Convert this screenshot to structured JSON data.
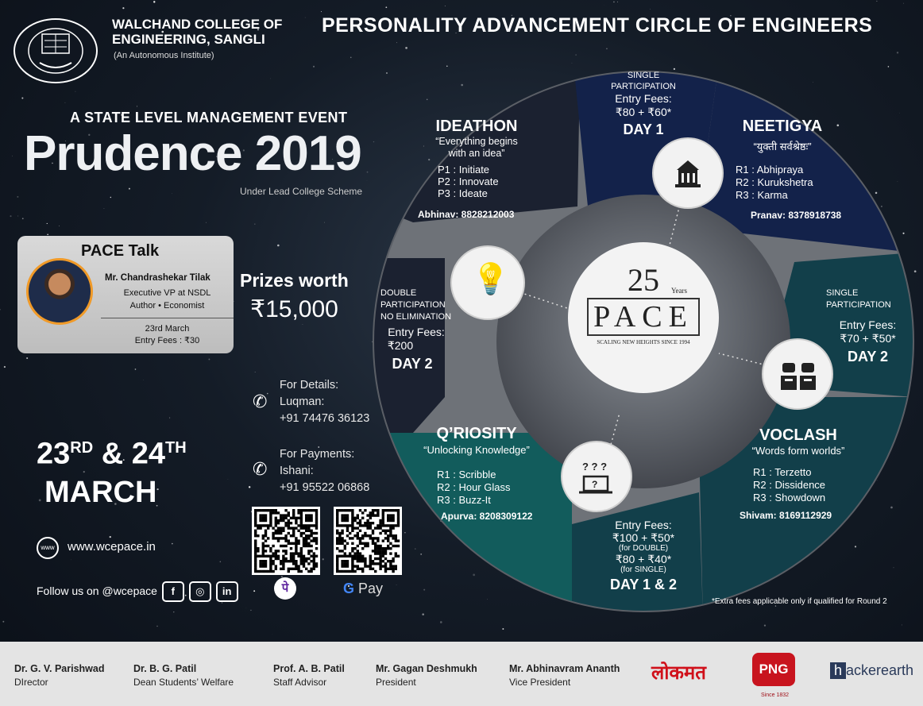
{
  "header": {
    "title": "PERSONALITY ADVANCEMENT CIRCLE OF ENGINEERS",
    "college_line1": "WALCHAND COLLEGE OF",
    "college_line2": "ENGINEERING, SANGLI",
    "college_sub": "(An Autonomous Institute)",
    "logo_text_top": "प्रियाविद्धि : शती",
    "logo_text_bottom": "WALCHAND COLLEGE OF ENGINEERING"
  },
  "event": {
    "type": "A STATE LEVEL MANAGEMENT EVENT",
    "name": "Prudence 2019",
    "scheme": "Under Lead College Scheme"
  },
  "pace_talk": {
    "title": "PACE Talk",
    "speaker": "Mr. Chandrashekar Tilak",
    "role": "Executive VP at NSDL",
    "tags": "Author • Economist",
    "date": "23rd March",
    "fees": "Entry Fees : ₹30"
  },
  "prizes": {
    "label": "Prizes worth",
    "amount": "₹15,000"
  },
  "contacts": {
    "details_label": "For Details:",
    "details_name": "Luqman:",
    "details_phone": "+91 74476 36123",
    "payments_label": "For Payments:",
    "payments_name": "Ishani:",
    "payments_phone": "+91 95522 06868"
  },
  "dates": {
    "day1": "23",
    "sup1": "RD",
    "amp": "&",
    "day2": "24",
    "sup2": "TH",
    "month": "MARCH"
  },
  "payments": {
    "phonepe_symbol": "पे",
    "gpay_label": "Pay",
    "gpay_g": "G"
  },
  "website": {
    "icon": "www",
    "url": "www.wcepace.in"
  },
  "social": {
    "follow": "Follow us on @wcepace",
    "icons": [
      "f",
      "◎",
      "in"
    ]
  },
  "center": {
    "years": "Years",
    "number": "25",
    "logo": "PACE",
    "tagline": "SCALING NEW HEIGHTS SINCE 1994"
  },
  "events": {
    "ideathon": {
      "title": "IDEATHON",
      "quote": "“Everything begins",
      "quote2": "with an idea”",
      "r1": "P1 :  Initiate",
      "r2": "P2 :  Innovate",
      "r3": "P3 :  Ideate",
      "contact": "Abhinav: 8828212003"
    },
    "day1_fee": {
      "l1": "SINGLE",
      "l2": "PARTICIPATION",
      "l3": "Entry Fees:",
      "l4": "₹80 + ₹60*",
      "day": "DAY 1"
    },
    "neetigya": {
      "title": "NEETIGYA",
      "quote": "“युक्ती सर्वश्रेष्ठः”",
      "r1": "R1 : Abhipraya",
      "r2": "R2 : Kurukshetra",
      "r3": "R3 : Karma",
      "contact": "Pranav: 8378918738"
    },
    "day2_single": {
      "l1": "SINGLE",
      "l2": "PARTICIPATION",
      "l3": "Entry Fees:",
      "l4": "₹70 + ₹50*",
      "day": "DAY 2"
    },
    "voclash": {
      "title": "VOCLASH",
      "quote": "“Words form worlds”",
      "r1": "R1 : Terzetto",
      "r2": "R2 : Dissidence",
      "r3": "R3 : Showdown",
      "contact": "Shivam: 8169112929"
    },
    "day12_fee": {
      "l1": "Entry Fees:",
      "l2": "₹100 + ₹50*",
      "l3": "(for DOUBLE)",
      "l4": "₹80 + ₹40*",
      "l5": "(for SINGLE)",
      "day": "DAY 1 & 2"
    },
    "qriosity": {
      "title": "Q’RIOSITY",
      "quote": "“Unlocking Knowledge”",
      "r1": "R1 : Scribble",
      "r2": "R2 : Hour Glass",
      "r3": "R3 : Buzz-It",
      "contact": "Apurva: 8208309122"
    },
    "day2_double": {
      "l1": "DOUBLE",
      "l2": "PARTICIPATION",
      "l3": "NO ELIMINATION",
      "l4": "Entry Fees:",
      "l5": "₹200",
      "day": "DAY 2"
    }
  },
  "note": "*Extra fees applicable only if qualified for Round 2",
  "footer": {
    "people": [
      {
        "name": "Dr. G. V. Parishwad",
        "role": "DIrector"
      },
      {
        "name": "Dr. B. G. Patil",
        "role": "Dean Students’ Welfare"
      },
      {
        "name": "Prof. A. B. Patil",
        "role": "Staff Advisor"
      },
      {
        "name": "Mr. Gagan Deshmukh",
        "role": "President"
      },
      {
        "name": "Mr. Abhinavram Ananth",
        "role": "Vice President"
      }
    ],
    "sponsors": {
      "lokmat": "लोकमत",
      "png": "PNG",
      "png_since": "Since 1832",
      "hackerearth": "hackerearth",
      "hackerearth_h": "h"
    }
  },
  "colors": {
    "navy": "#13224a",
    "teal": "#123f4a",
    "dark": "#1b2130",
    "grey": "#d8dadc",
    "orange": "#f09a28"
  }
}
